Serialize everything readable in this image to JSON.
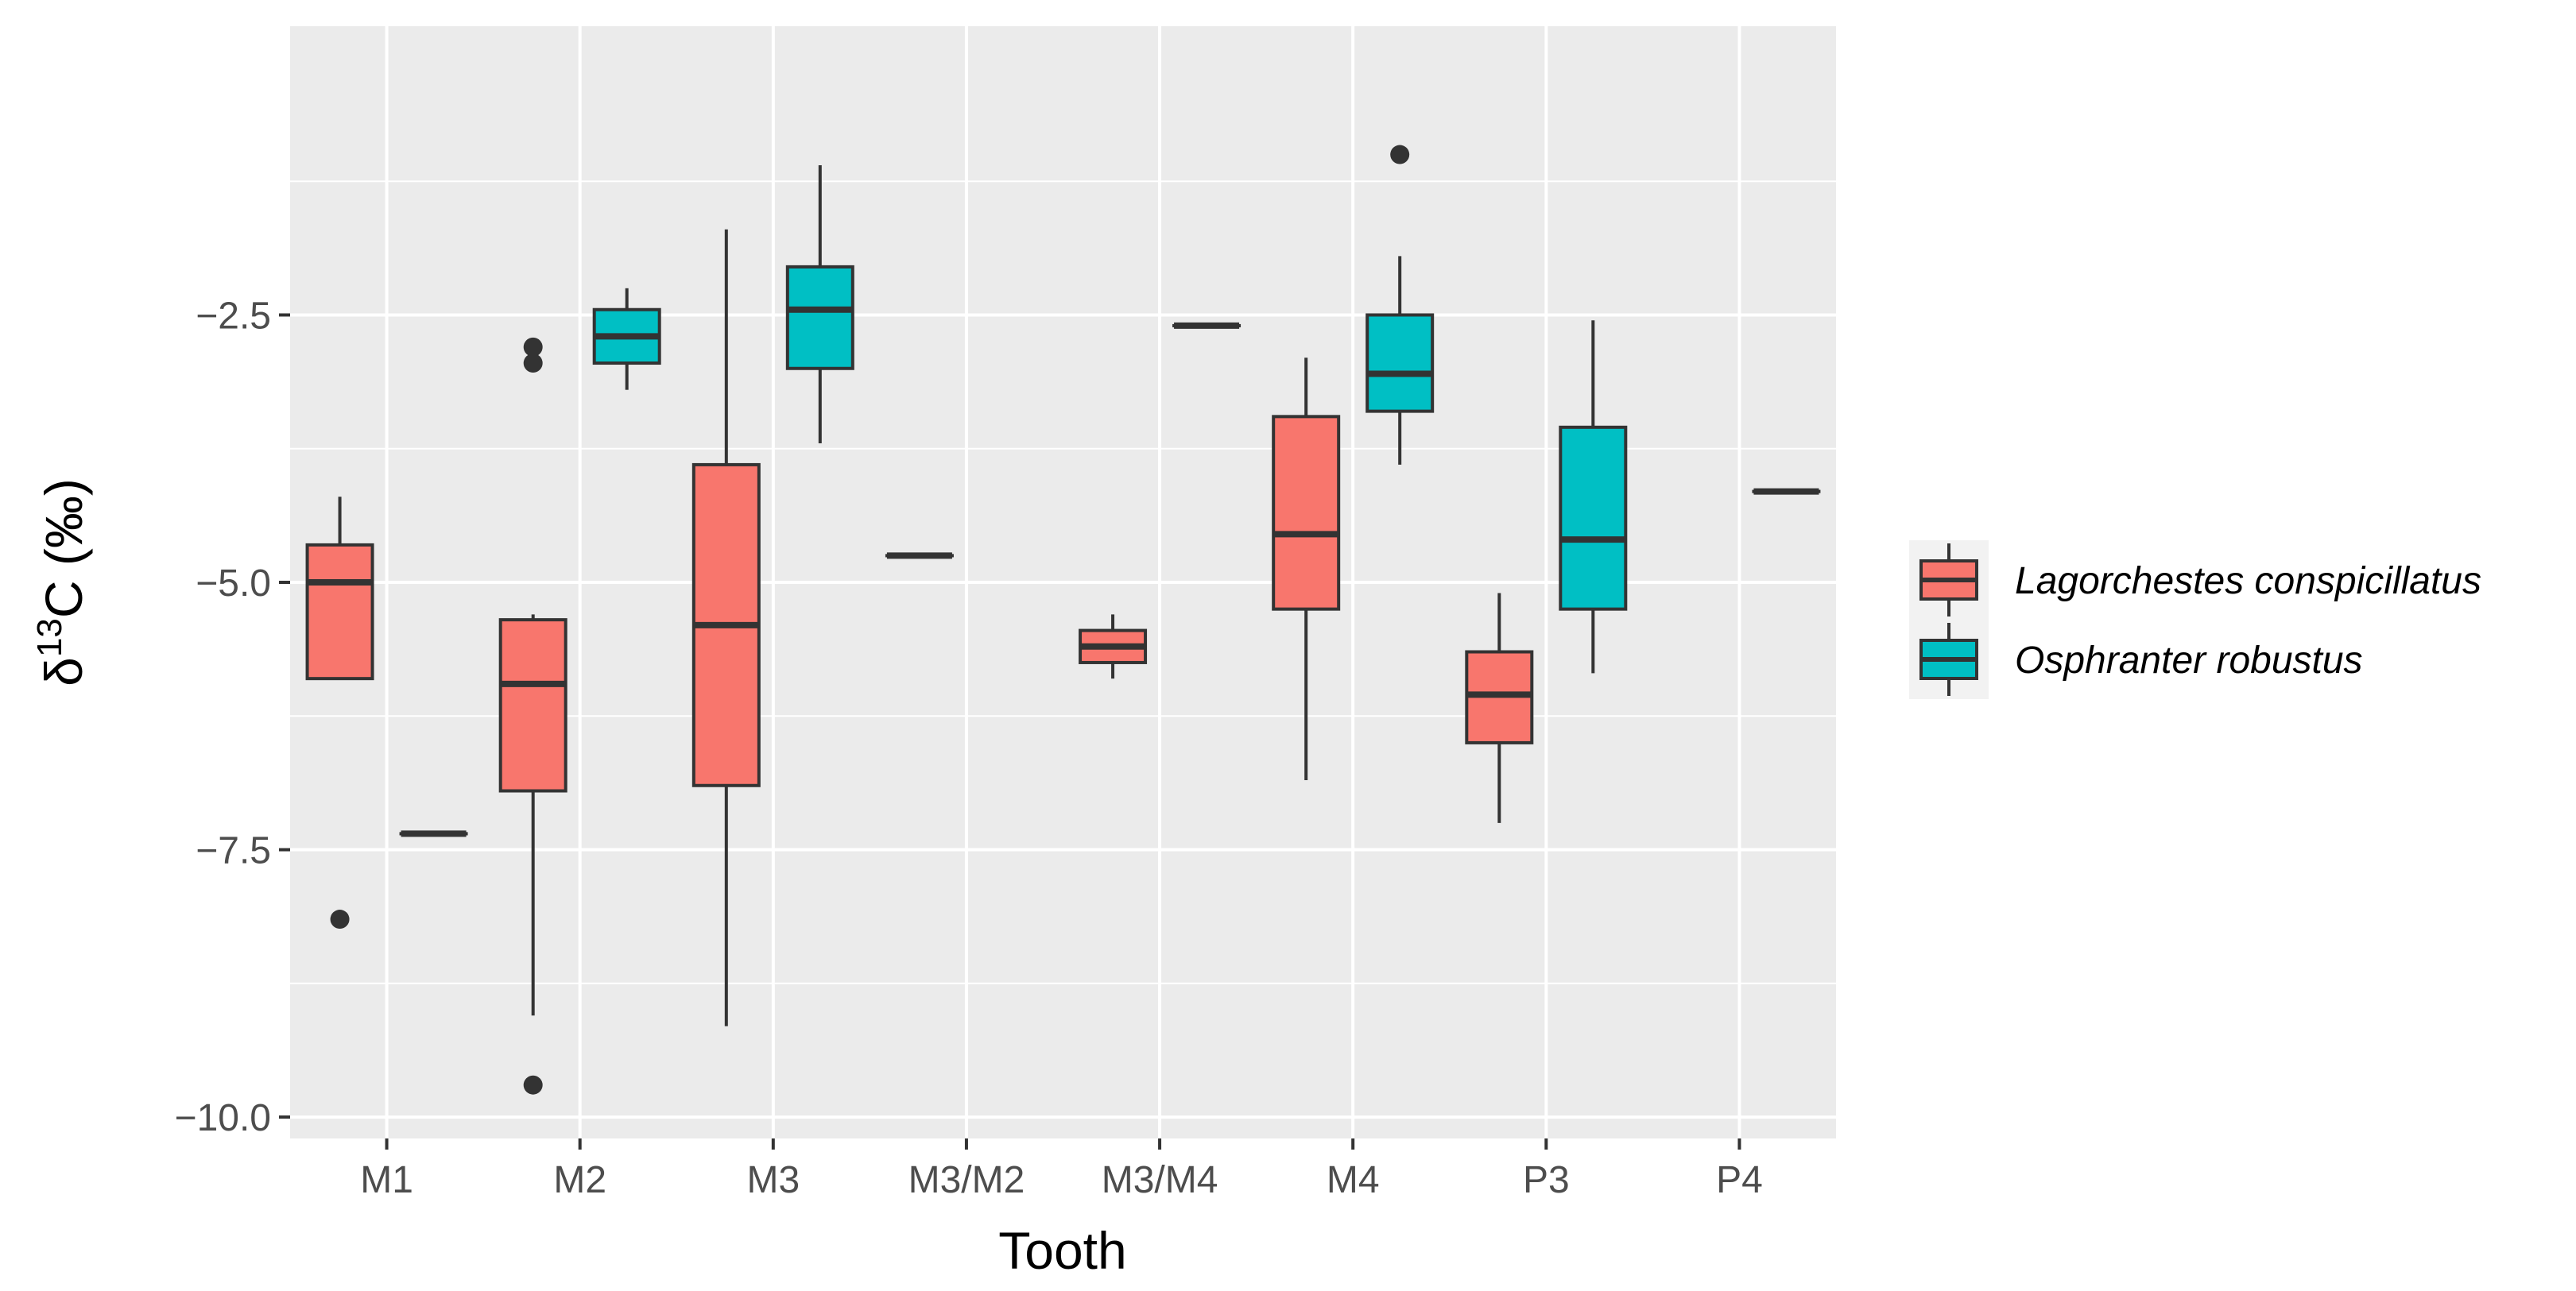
{
  "chart_data": {
    "type": "boxplot",
    "title": "",
    "xlabel": "Tooth",
    "ylabel": {
      "prefix": "δ",
      "superscript": "13",
      "suffix": "C (‰)"
    },
    "categories": [
      "M1",
      "M2",
      "M3",
      "M3/M2",
      "M3/M4",
      "M4",
      "P3",
      "P4"
    ],
    "ylim": [
      -10.2,
      0.2
    ],
    "yticks": [
      -10.0,
      -7.5,
      -5.0,
      -2.5
    ],
    "ytick_labels": [
      "−10.0",
      "−7.5",
      "−5.0",
      "−2.5"
    ],
    "grid": true,
    "legend_position": "right",
    "series": [
      {
        "name": "Lagorchestes conspicillatus",
        "color": "#F8766D",
        "boxes": [
          {
            "category": "M1",
            "min": -5.9,
            "q1": -5.9,
            "median": -5.0,
            "q3": -4.65,
            "max": -4.2,
            "outliers": [
              -8.15
            ]
          },
          {
            "category": "M2",
            "min": -9.05,
            "q1": -6.95,
            "median": -5.95,
            "q3": -5.35,
            "max": -5.3,
            "outliers": [
              -9.7
            ]
          },
          {
            "category": "M3",
            "min": -9.15,
            "q1": -6.9,
            "median": -5.4,
            "q3": -3.9,
            "max": -1.7,
            "outliers": []
          },
          {
            "category": "M3/M2",
            "min": -4.75,
            "q1": -4.75,
            "median": -4.75,
            "q3": -4.75,
            "max": -4.75,
            "outliers": []
          },
          {
            "category": "M3/M4",
            "min": -5.9,
            "q1": -5.75,
            "median": -5.6,
            "q3": -5.45,
            "max": -5.3,
            "outliers": []
          },
          {
            "category": "M4",
            "min": -6.85,
            "q1": -5.25,
            "median": -4.55,
            "q3": -3.45,
            "max": -2.9,
            "outliers": []
          },
          {
            "category": "P3",
            "min": -7.25,
            "q1": -6.5,
            "median": -6.05,
            "q3": -5.65,
            "max": -5.1,
            "outliers": []
          }
        ]
      },
      {
        "name": "Osphranter robustus",
        "color": "#00BFC4",
        "boxes": [
          {
            "category": "M1",
            "min": -7.35,
            "q1": -7.35,
            "median": -7.35,
            "q3": -7.35,
            "max": -7.35,
            "outliers": []
          },
          {
            "category": "M2",
            "min": -3.2,
            "q1": -2.95,
            "median": -2.7,
            "q3": -2.45,
            "max": -2.25,
            "outliers": []
          },
          {
            "category": "M3",
            "min": -3.7,
            "q1": -3.0,
            "median": -2.45,
            "q3": -2.05,
            "max": -1.1,
            "outliers": []
          },
          {
            "category": "M3/M4",
            "min": -2.6,
            "q1": -2.6,
            "median": -2.6,
            "q3": -2.6,
            "max": -2.6,
            "outliers": []
          },
          {
            "category": "M4",
            "min": -3.9,
            "q1": -3.4,
            "median": -3.05,
            "q3": -2.5,
            "max": -1.95,
            "outliers": [
              -1.0
            ]
          },
          {
            "category": "P3",
            "min": -5.85,
            "q1": -5.25,
            "median": -4.6,
            "q3": -3.55,
            "max": -2.55,
            "outliers": []
          },
          {
            "category": "P4",
            "min": -4.15,
            "q1": -4.15,
            "median": -4.15,
            "q3": -4.15,
            "max": -4.15,
            "outliers": []
          }
        ]
      }
    ]
  },
  "outliers_extra": [
    {
      "series": "Lagorchestes conspicillatus",
      "category": "M2",
      "value": -2.8
    },
    {
      "series": "Lagorchestes conspicillatus",
      "category": "M2",
      "value": -2.95
    }
  ]
}
